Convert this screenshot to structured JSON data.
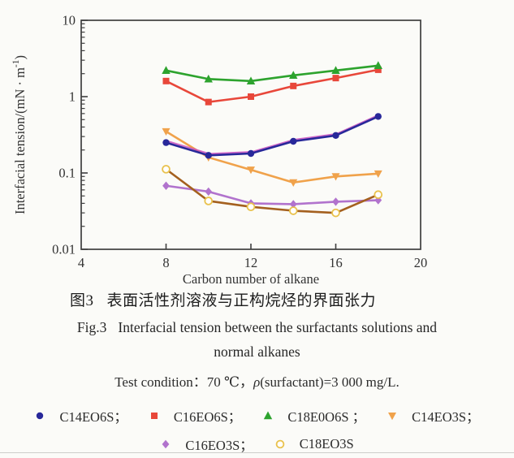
{
  "figure": {
    "captions": {
      "zh_label": "图3",
      "zh_text": "表面活性剂溶液与正构烷烃的界面张力",
      "en_label": "Fig.3",
      "en_line1": "Interfacial tension between the surfactants solutions and",
      "en_line2": "normal alkanes",
      "condition_prefix": "Test condition：70 ℃，",
      "condition_rho": "ρ",
      "condition_rest": "(surfactant)=3 000 mg/L."
    },
    "legend_rows": [
      [
        "C14EO6S；",
        "C16EO6S；",
        "C18E0O6S ；",
        "C14EO3S；"
      ],
      [
        "C16EO3S；",
        "C18EO3S"
      ]
    ],
    "frame_color": "#3f3f3f",
    "text_color": "#333333"
  },
  "chart_data": {
    "type": "line",
    "x": [
      8,
      10,
      12,
      14,
      16,
      18
    ],
    "xlabel": "Carbon number of alkane",
    "ylabel": "Interfacial tension/(mN · m⁻¹)",
    "xlim": [
      4,
      20
    ],
    "ylim": [
      0.01,
      10
    ],
    "yscale": "log",
    "x_ticks": [
      4,
      8,
      12,
      16,
      20
    ],
    "y_ticks": [
      10,
      1,
      0.1,
      0.01
    ],
    "y_tick_labels": [
      "10",
      "1",
      "0.1",
      "0.01"
    ],
    "grid": false,
    "legend_position": "below-figure",
    "series": [
      {
        "name": "C14EO6S",
        "marker": "circle",
        "color": "#28289a",
        "fringe_color": "#c94fc0",
        "values": [
          0.25,
          0.17,
          0.18,
          0.26,
          0.31,
          0.55
        ]
      },
      {
        "name": "C16EO6S",
        "marker": "square",
        "color": "#e8473a",
        "values": [
          1.6,
          0.85,
          1.0,
          1.38,
          1.75,
          2.25
        ]
      },
      {
        "name": "C18E0O6S",
        "marker": "triangle-up",
        "color": "#2da32e",
        "values": [
          2.2,
          1.7,
          1.6,
          1.9,
          2.2,
          2.55
        ]
      },
      {
        "name": "C14EO3S",
        "marker": "triangle-down",
        "color": "#f0a24b",
        "values": [
          0.35,
          0.16,
          0.11,
          0.075,
          0.09,
          0.098
        ]
      },
      {
        "name": "C16EO3S",
        "marker": "diamond",
        "color": "#b173cd",
        "values": [
          0.068,
          0.057,
          0.04,
          0.039,
          0.042,
          0.044
        ]
      },
      {
        "name": "C18EO3S",
        "marker": "open-circle",
        "color": "#a4601f",
        "marker_color": "#e9c24d",
        "values": [
          0.112,
          0.043,
          0.036,
          0.032,
          0.03,
          0.052
        ]
      }
    ]
  }
}
